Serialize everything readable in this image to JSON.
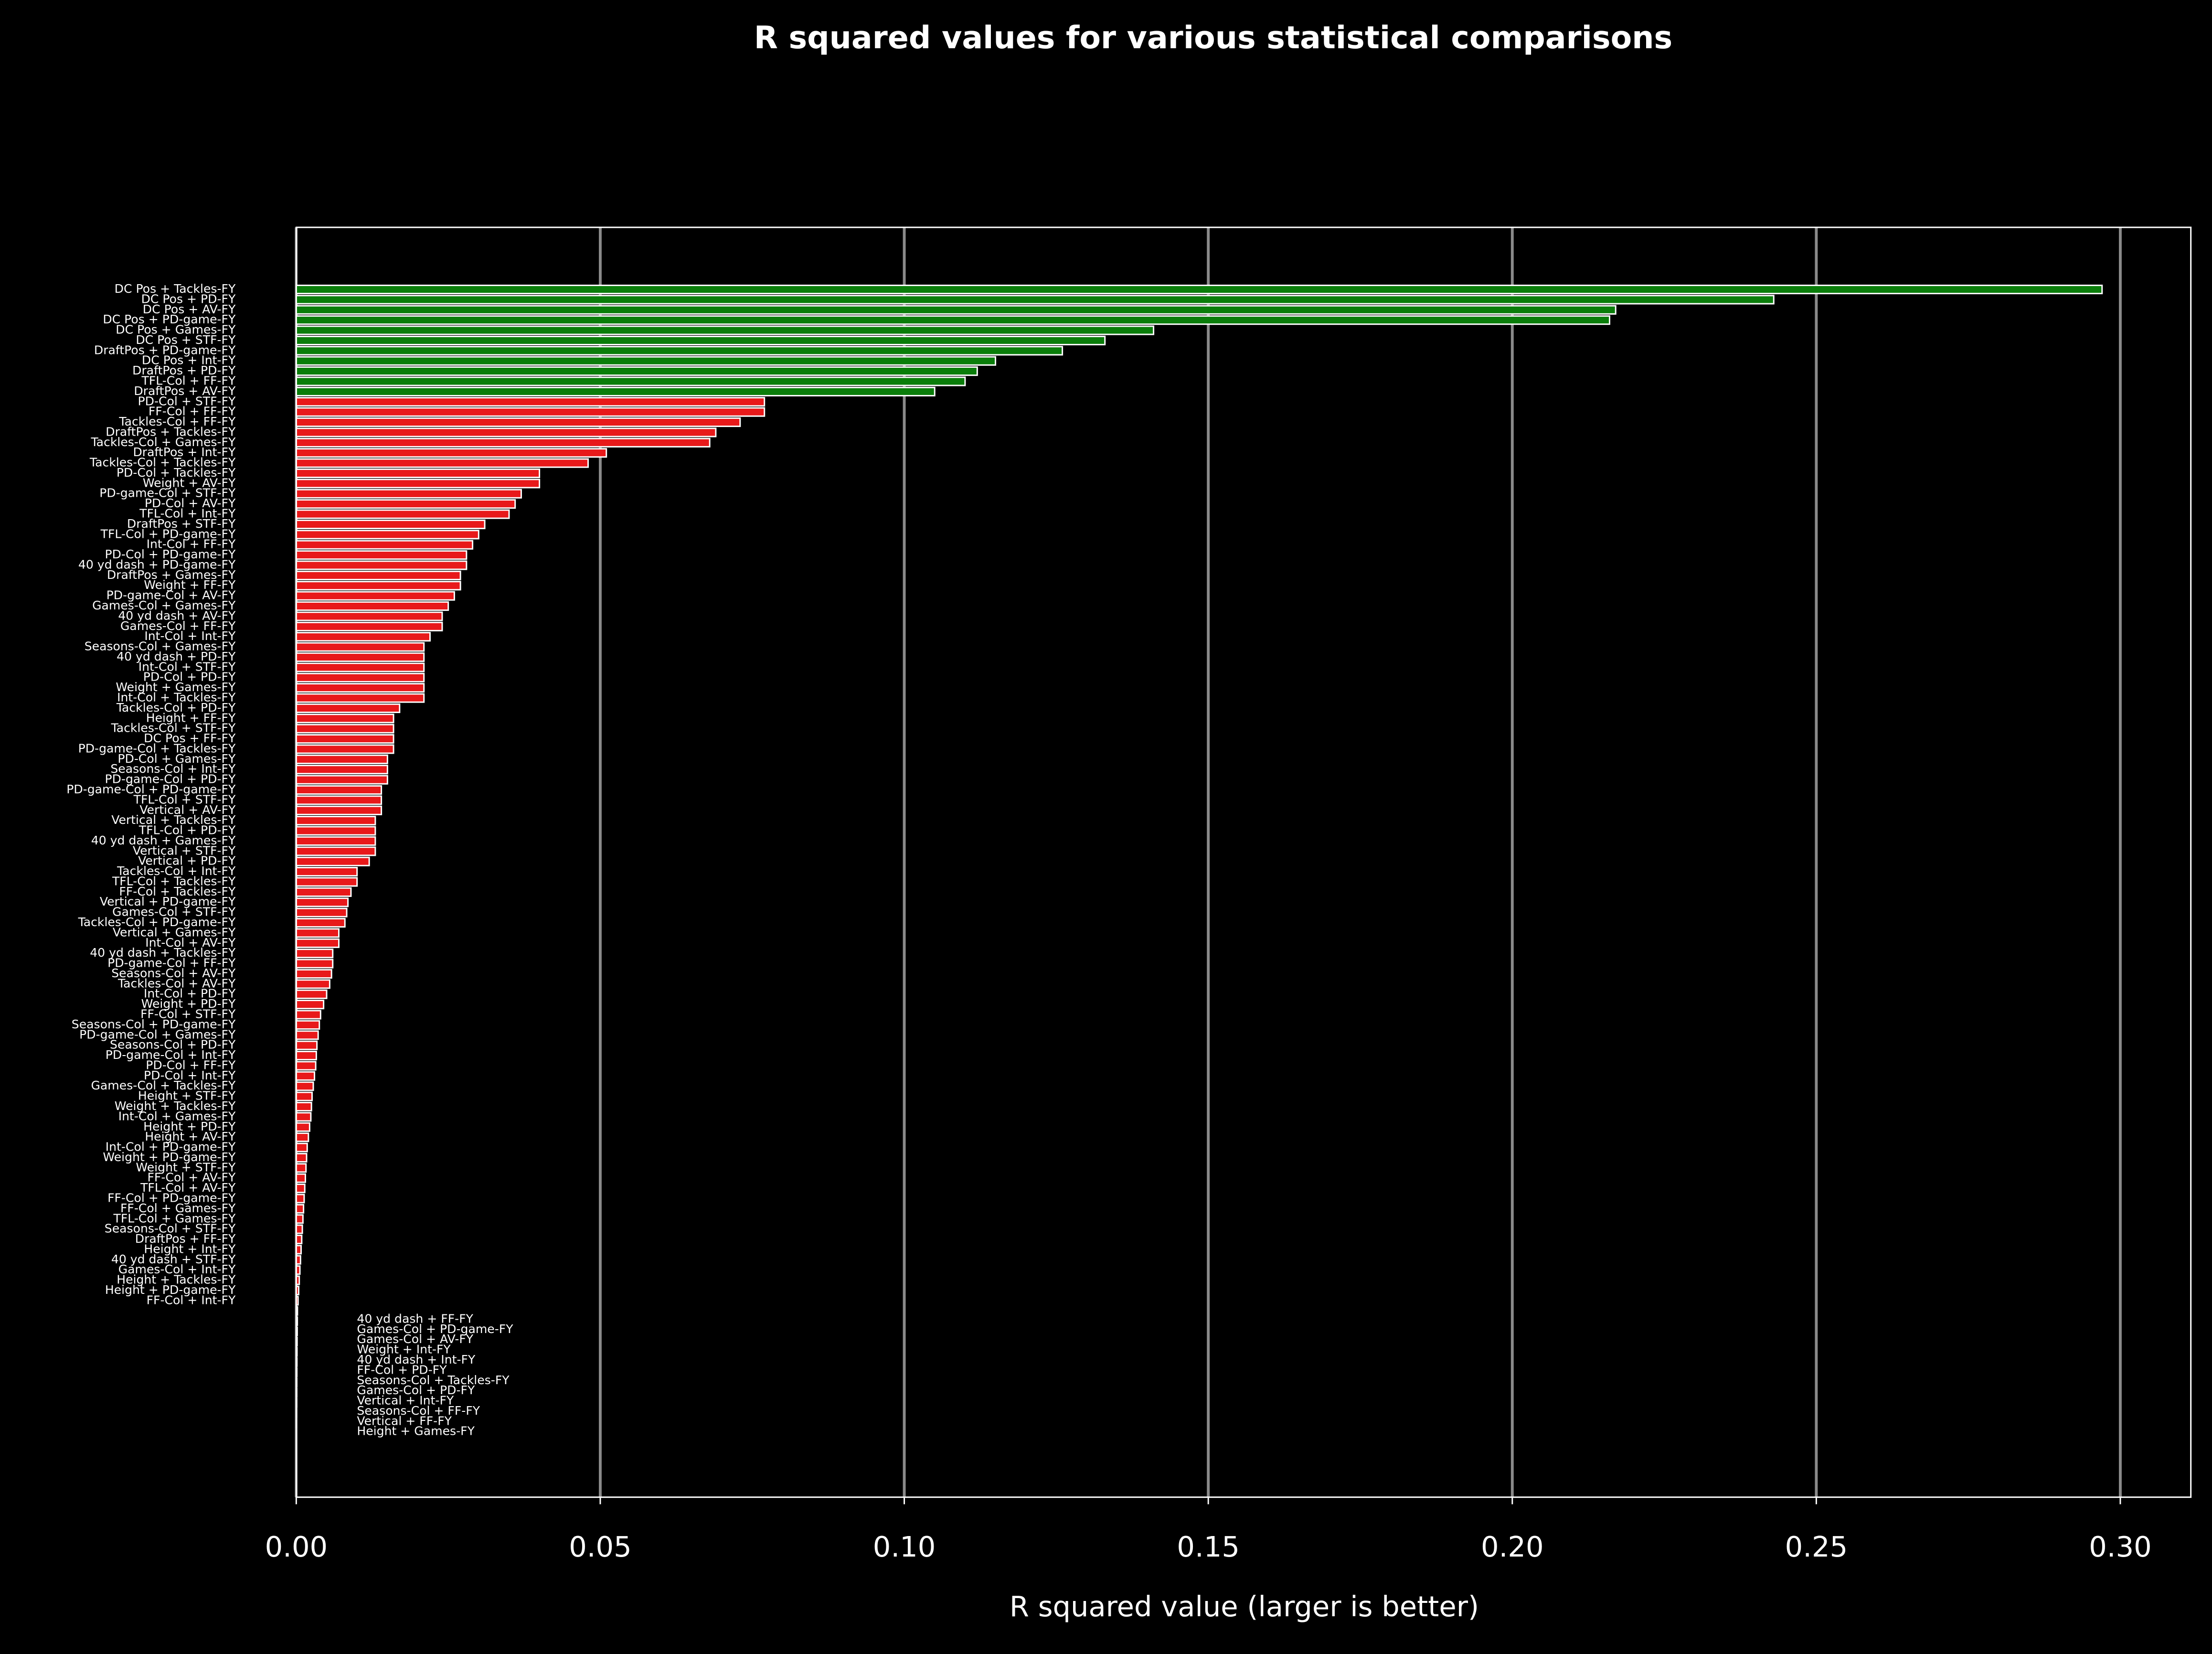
{
  "chart_data": {
    "type": "barh",
    "title": "R squared values for various statistical comparisons",
    "xlabel": "R squared value (larger is better)",
    "categories": [
      "DC Pos + Tackles-FY",
      "DC Pos + PD-FY",
      "DC Pos + AV-FY",
      "DC Pos + PD-game-FY",
      "DC Pos + Games-FY",
      "DC Pos + STF-FY",
      "DraftPos + PD-game-FY",
      "DC Pos + Int-FY",
      "DraftPos + PD-FY",
      "TFL-Col + FF-FY",
      "DraftPos + AV-FY",
      "PD-Col + STF-FY",
      "FF-Col + FF-FY",
      "Tackles-Col + FF-FY",
      "DraftPos + Tackles-FY",
      "Tackles-Col + Games-FY",
      "DraftPos + Int-FY",
      "Tackles-Col + Tackles-FY",
      "PD-Col + Tackles-FY",
      "Weight + AV-FY",
      "PD-game-Col + STF-FY",
      "PD-Col + AV-FY",
      "TFL-Col + Int-FY",
      "DraftPos + STF-FY",
      "TFL-Col + PD-game-FY",
      "Int-Col + FF-FY",
      "PD-Col + PD-game-FY",
      "40 yd dash + PD-game-FY",
      "DraftPos + Games-FY",
      "Weight + FF-FY",
      "PD-game-Col + AV-FY",
      "Games-Col + Games-FY",
      "40 yd dash + AV-FY",
      "Games-Col + FF-FY",
      "Int-Col + Int-FY",
      "Seasons-Col + Games-FY",
      "40 yd dash + PD-FY",
      "Int-Col + STF-FY",
      "PD-Col + PD-FY",
      "Weight + Games-FY",
      "Int-Col + Tackles-FY",
      "Tackles-Col + PD-FY",
      "Height + FF-FY",
      "Tackles-Col + STF-FY",
      "DC Pos + FF-FY",
      "PD-game-Col + Tackles-FY",
      "PD-Col + Games-FY",
      "Seasons-Col + Int-FY",
      "PD-game-Col + PD-FY",
      "PD-game-Col + PD-game-FY",
      "TFL-Col + STF-FY",
      "Vertical + AV-FY",
      "Vertical + Tackles-FY",
      "TFL-Col + PD-FY",
      "40 yd dash + Games-FY",
      "Vertical + STF-FY",
      "Vertical + PD-FY",
      "Tackles-Col + Int-FY",
      "TFL-Col + Tackles-FY",
      "FF-Col + Tackles-FY",
      "Vertical + PD-game-FY",
      "Games-Col + STF-FY",
      "Tackles-Col + PD-game-FY",
      "Vertical + Games-FY",
      "Int-Col + AV-FY",
      "40 yd dash + Tackles-FY",
      "PD-game-Col + FF-FY",
      "Seasons-Col + AV-FY",
      "Tackles-Col + AV-FY",
      "Int-Col + PD-FY",
      "Weight + PD-FY",
      "FF-Col + STF-FY",
      "Seasons-Col + PD-game-FY",
      "PD-game-Col + Games-FY",
      "Seasons-Col + PD-FY",
      "PD-game-Col + Int-FY",
      "PD-Col + FF-FY",
      "PD-Col + Int-FY",
      "Games-Col + Tackles-FY",
      "Height + STF-FY",
      "Weight + Tackles-FY",
      "Int-Col + Games-FY",
      "Height + PD-FY",
      "Height + AV-FY",
      "Int-Col + PD-game-FY",
      "Weight + PD-game-FY",
      "Weight + STF-FY",
      "FF-Col + AV-FY",
      "TFL-Col + AV-FY",
      "FF-Col + PD-game-FY",
      "FF-Col + Games-FY",
      "TFL-Col + Games-FY",
      "Seasons-Col + STF-FY",
      "DraftPos + FF-FY",
      "Height + Int-FY",
      "40 yd dash + STF-FY",
      "Games-Col + Int-FY",
      "Height + Tackles-FY",
      "Height + PD-game-FY",
      "FF-Col + Int-FY",
      "40 yd dash + FF-FY",
      "Games-Col + PD-game-FY",
      "Games-Col + AV-FY",
      "Weight + Int-FY",
      "40 yd dash + Int-FY",
      "FF-Col + PD-FY",
      "Seasons-Col + Tackles-FY",
      "Games-Col + PD-FY",
      "Vertical + Int-FY",
      "Seasons-Col + FF-FY",
      "Vertical + FF-FY",
      "Height + Games-FY"
    ],
    "values": [
      0.297,
      0.243,
      0.217,
      0.216,
      0.141,
      0.133,
      0.126,
      0.115,
      0.112,
      0.11,
      0.105,
      0.077,
      0.077,
      0.073,
      0.069,
      0.068,
      0.051,
      0.048,
      0.04,
      0.04,
      0.037,
      0.036,
      0.035,
      0.031,
      0.03,
      0.029,
      0.028,
      0.028,
      0.027,
      0.027,
      0.026,
      0.025,
      0.024,
      0.024,
      0.022,
      0.021,
      0.021,
      0.021,
      0.021,
      0.021,
      0.021,
      0.017,
      0.016,
      0.016,
      0.016,
      0.016,
      0.015,
      0.015,
      0.015,
      0.014,
      0.014,
      0.014,
      0.013,
      0.013,
      0.013,
      0.013,
      0.012,
      0.01,
      0.01,
      0.009,
      0.0085,
      0.0083,
      0.008,
      0.007,
      0.007,
      0.006,
      0.006,
      0.0058,
      0.0055,
      0.005,
      0.0045,
      0.004,
      0.0038,
      0.0036,
      0.0034,
      0.0033,
      0.0032,
      0.003,
      0.0028,
      0.0026,
      0.0025,
      0.0024,
      0.0022,
      0.002,
      0.0018,
      0.0017,
      0.0016,
      0.0015,
      0.0014,
      0.0013,
      0.0012,
      0.0011,
      0.001,
      0.0009,
      0.0008,
      0.0007,
      0.0006,
      0.0005,
      0.0004,
      0.0003,
      0.0002,
      0.00018,
      0.00016,
      0.00014,
      0.00012,
      0.0001,
      8e-05,
      6e-05,
      5e-05,
      4e-05,
      2e-05,
      1e-05
    ],
    "colors": [
      "#0a7d0a",
      "#0a7d0a",
      "#0a7d0a",
      "#0a7d0a",
      "#0a7d0a",
      "#0a7d0a",
      "#0a7d0a",
      "#0a7d0a",
      "#0a7d0a",
      "#0a7d0a",
      "#0a7d0a",
      "#e8191a",
      "#e8191a",
      "#e8191a",
      "#e8191a",
      "#e8191a",
      "#e8191a",
      "#e8191a",
      "#e8191a",
      "#e8191a",
      "#e8191a",
      "#e8191a",
      "#e8191a",
      "#e8191a",
      "#e8191a",
      "#e8191a",
      "#e8191a",
      "#e8191a",
      "#e8191a",
      "#e8191a",
      "#e8191a",
      "#e8191a",
      "#e8191a",
      "#e8191a",
      "#e8191a",
      "#e8191a",
      "#e8191a",
      "#e8191a",
      "#e8191a",
      "#e8191a",
      "#e8191a",
      "#e8191a",
      "#e8191a",
      "#e8191a",
      "#e8191a",
      "#e8191a",
      "#e8191a",
      "#e8191a",
      "#e8191a",
      "#e8191a",
      "#e8191a",
      "#e8191a",
      "#e8191a",
      "#e8191a",
      "#e8191a",
      "#e8191a",
      "#e8191a",
      "#e8191a",
      "#e8191a",
      "#e8191a",
      "#e8191a",
      "#e8191a",
      "#e8191a",
      "#e8191a",
      "#e8191a",
      "#e8191a",
      "#e8191a",
      "#e8191a",
      "#e8191a",
      "#e8191a",
      "#e8191a",
      "#e8191a",
      "#e8191a",
      "#e8191a",
      "#e8191a",
      "#e8191a",
      "#e8191a",
      "#e8191a",
      "#e8191a",
      "#e8191a",
      "#e8191a",
      "#e8191a",
      "#e8191a",
      "#e8191a",
      "#e8191a",
      "#e8191a",
      "#e8191a",
      "#e8191a",
      "#e8191a",
      "#e8191a",
      "#e8191a",
      "#e8191a",
      "#e8191a",
      "#e8191a",
      "#e8191a",
      "#e8191a",
      "#e8191a",
      "#e8191a",
      "#e8191a",
      "#e8191a",
      "#e8191a",
      "#e8191a",
      "#e8191a",
      "#e8191a",
      "#e8191a",
      "#e8191a",
      "#e8191a",
      "#e8191a",
      "#e8191a",
      "#e8191a",
      "#e8191a",
      "#e8191a"
    ],
    "xlim": [
      0,
      0.3116
    ],
    "xticks": [
      {
        "value": 0,
        "label": "0.00"
      },
      {
        "value": 0.05,
        "label": "0.05"
      },
      {
        "value": 0.1,
        "label": "0.10"
      },
      {
        "value": 0.15,
        "label": "0.15"
      },
      {
        "value": 0.2,
        "label": "0.20"
      },
      {
        "value": 0.25,
        "label": "0.25"
      },
      {
        "value": 0.3,
        "label": "0.30"
      }
    ],
    "grid": true
  }
}
